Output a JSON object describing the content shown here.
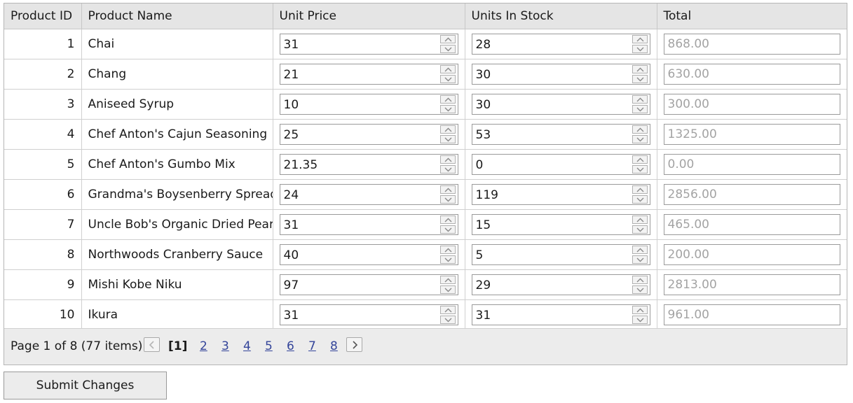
{
  "headers": {
    "product_id": "Product ID",
    "product_name": "Product Name",
    "unit_price": "Unit Price",
    "units_in_stock": "Units In Stock",
    "total": "Total"
  },
  "rows": [
    {
      "id": "1",
      "name": "Chai",
      "price": "31",
      "stock": "28",
      "total": "868.00"
    },
    {
      "id": "2",
      "name": "Chang",
      "price": "21",
      "stock": "30",
      "total": "630.00"
    },
    {
      "id": "3",
      "name": "Aniseed Syrup",
      "price": "10",
      "stock": "30",
      "total": "300.00"
    },
    {
      "id": "4",
      "name": "Chef Anton's Cajun Seasoning",
      "price": "25",
      "stock": "53",
      "total": "1325.00"
    },
    {
      "id": "5",
      "name": "Chef Anton's Gumbo Mix",
      "price": "21.35",
      "stock": "0",
      "total": "0.00"
    },
    {
      "id": "6",
      "name": "Grandma's Boysenberry Spread",
      "price": "24",
      "stock": "119",
      "total": "2856.00"
    },
    {
      "id": "7",
      "name": "Uncle Bob's Organic Dried Pears",
      "price": "31",
      "stock": "15",
      "total": "465.00"
    },
    {
      "id": "8",
      "name": "Northwoods Cranberry Sauce",
      "price": "40",
      "stock": "5",
      "total": "200.00"
    },
    {
      "id": "9",
      "name": "Mishi Kobe Niku",
      "price": "97",
      "stock": "29",
      "total": "2813.00"
    },
    {
      "id": "10",
      "name": "Ikura",
      "price": "31",
      "stock": "31",
      "total": "961.00"
    }
  ],
  "pager": {
    "summary": "Page 1 of 8 (77 items)",
    "pages": [
      "[1]",
      "2",
      "3",
      "4",
      "5",
      "6",
      "7",
      "8"
    ]
  },
  "submit_label": "Submit Changes"
}
